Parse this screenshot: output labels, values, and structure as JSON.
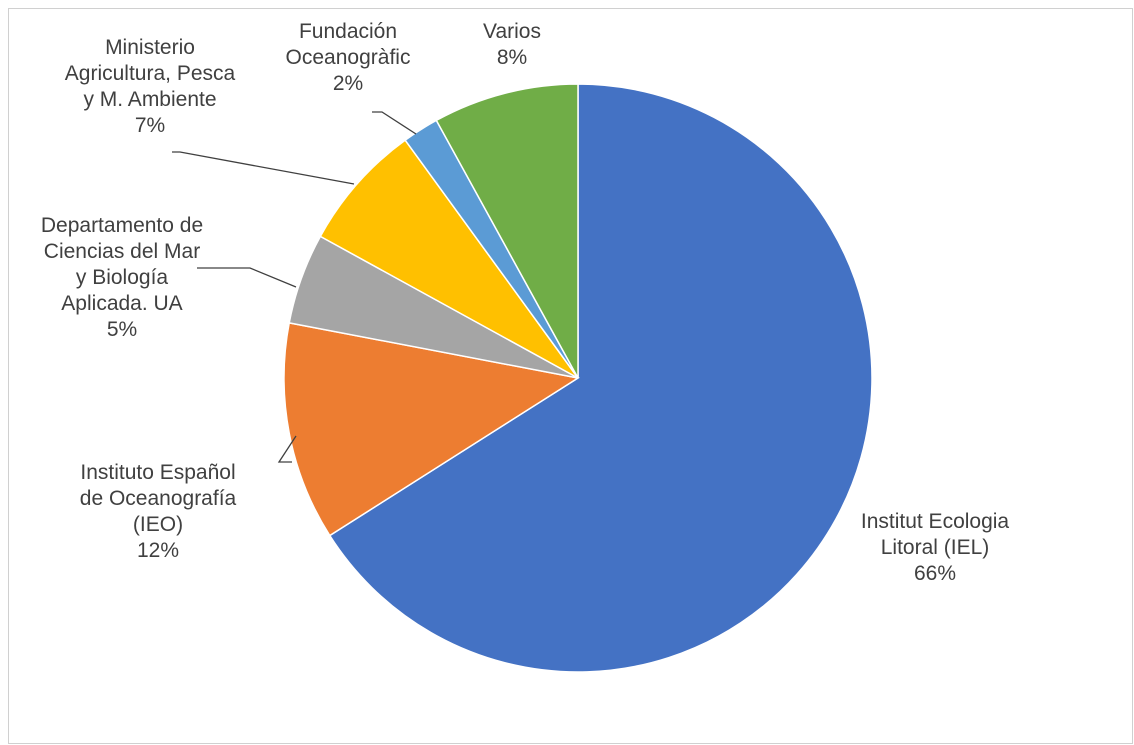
{
  "chart_data": {
    "type": "pie",
    "title": "",
    "start_angle_deg": 0,
    "direction": "clockwise",
    "slices": [
      {
        "label": [
          "Institut Ecologia",
          "Litoral (IEL)"
        ],
        "value": 66,
        "value_label": "66%",
        "color": "#4472C4"
      },
      {
        "label": [
          "Instituto Español",
          "de Oceanografía",
          "(IEO)"
        ],
        "value": 12,
        "value_label": "12%",
        "color": "#ED7D31"
      },
      {
        "label": [
          "Departamento de",
          "Ciencias del Mar",
          "y Biología",
          "Aplicada. UA"
        ],
        "value": 5,
        "value_label": "5%",
        "color": "#A5A5A5"
      },
      {
        "label": [
          "Ministerio",
          "Agricultura, Pesca",
          "y M. Ambiente"
        ],
        "value": 7,
        "value_label": "7%",
        "color": "#FFC000"
      },
      {
        "label": [
          "Fundación",
          "Oceanogràfic"
        ],
        "value": 2,
        "value_label": "2%",
        "color": "#5B9BD5"
      },
      {
        "label": [
          "Varios"
        ],
        "value": 8,
        "value_label": "8%",
        "color": "#70AD47"
      }
    ]
  }
}
